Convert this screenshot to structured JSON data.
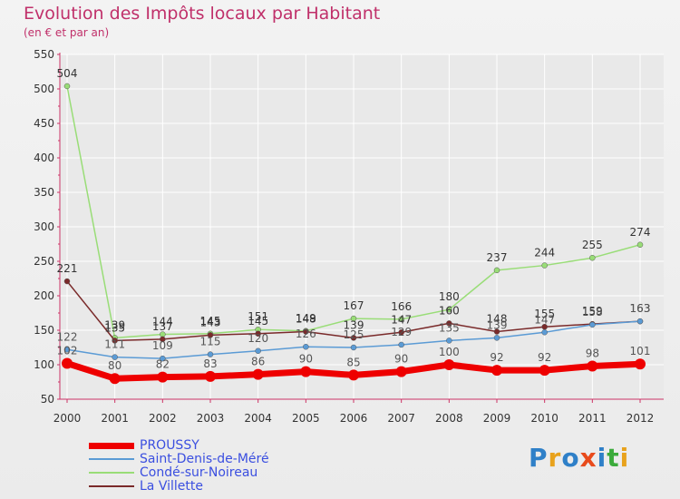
{
  "page": {
    "title": "Evolution des Impôts locaux par Habitant",
    "subtitle": "(en € et par an)"
  },
  "logo": {
    "text": "Proxiti",
    "colors": [
      "#2f80c8",
      "#e8a21c",
      "#2f80c8",
      "#e84b1c",
      "#2f80c8",
      "#3cab3c",
      "#e8a21c"
    ]
  },
  "colors": {
    "title": "#c0306a",
    "axis": "#cc3366",
    "grid": "#ffffff"
  },
  "chart_data": {
    "type": "line",
    "title": "Evolution des Impôts locaux par Habitant",
    "subtitle": "(en € et par an)",
    "xlabel": "",
    "ylabel": "",
    "x": [
      "2000",
      "2001",
      "2002",
      "2003",
      "2004",
      "2005",
      "2006",
      "2007",
      "2008",
      "2009",
      "2010",
      "2011",
      "2012"
    ],
    "yticks": [
      50,
      100,
      150,
      200,
      250,
      300,
      350,
      400,
      450,
      500,
      550
    ],
    "ylim": [
      50,
      550
    ],
    "grid": true,
    "legend": "bottom-left",
    "series": [
      {
        "name": "PROUSSY",
        "color": "#ee0000",
        "label_color": "#555555",
        "width": 7,
        "values": [
          102,
          80,
          82,
          83,
          86,
          90,
          85,
          90,
          100,
          92,
          92,
          98,
          101
        ]
      },
      {
        "name": "Saint-Denis-de-Méré",
        "color": "#5b9bd5",
        "label_color": "#555555",
        "width": 1.5,
        "values": [
          122,
          111,
          109,
          115,
          120,
          126,
          125,
          129,
          135,
          139,
          147,
          158,
          163
        ]
      },
      {
        "name": "Condé-sur-Noireau",
        "color": "#99dd77",
        "label_color": "#333333",
        "width": 1.5,
        "values": [
          504,
          139,
          144,
          145,
          151,
          149,
          167,
          166,
          180,
          237,
          244,
          255,
          274
        ]
      },
      {
        "name": "La Villette",
        "color": "#7a2a2a",
        "label_color": "#333333",
        "width": 1.5,
        "values": [
          221,
          135,
          137,
          143,
          145,
          148,
          139,
          147,
          160,
          148,
          155,
          159,
          163
        ]
      }
    ]
  }
}
